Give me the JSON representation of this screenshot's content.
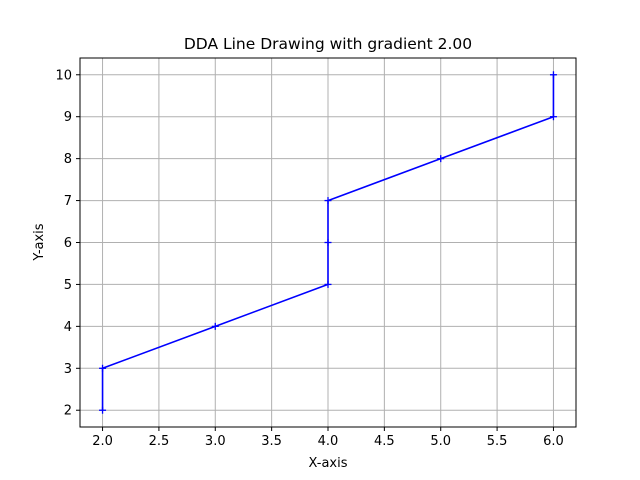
{
  "chart_data": {
    "type": "line",
    "title": "DDA Line Drawing with gradient 2.00",
    "xlabel": "X-axis",
    "ylabel": "Y-axis",
    "xlim": [
      1.8,
      6.2
    ],
    "ylim": [
      1.6,
      10.4
    ],
    "x_ticks": [
      "2.0",
      "2.5",
      "3.0",
      "3.5",
      "4.0",
      "4.5",
      "5.0",
      "5.5",
      "6.0"
    ],
    "y_ticks": [
      "2",
      "3",
      "4",
      "5",
      "6",
      "7",
      "8",
      "9",
      "10"
    ],
    "grid": true,
    "series": [
      {
        "marker": "+",
        "color": "#0000ff",
        "points": [
          [
            2,
            2
          ],
          [
            2,
            3
          ],
          [
            3,
            4
          ],
          [
            4,
            5
          ],
          [
            4,
            6
          ],
          [
            4,
            7
          ],
          [
            5,
            8
          ],
          [
            6,
            9
          ],
          [
            6,
            10
          ]
        ]
      }
    ]
  },
  "colors": {
    "line": "#0000ff",
    "grid": "#b0b0b0",
    "axes": "#000000"
  }
}
